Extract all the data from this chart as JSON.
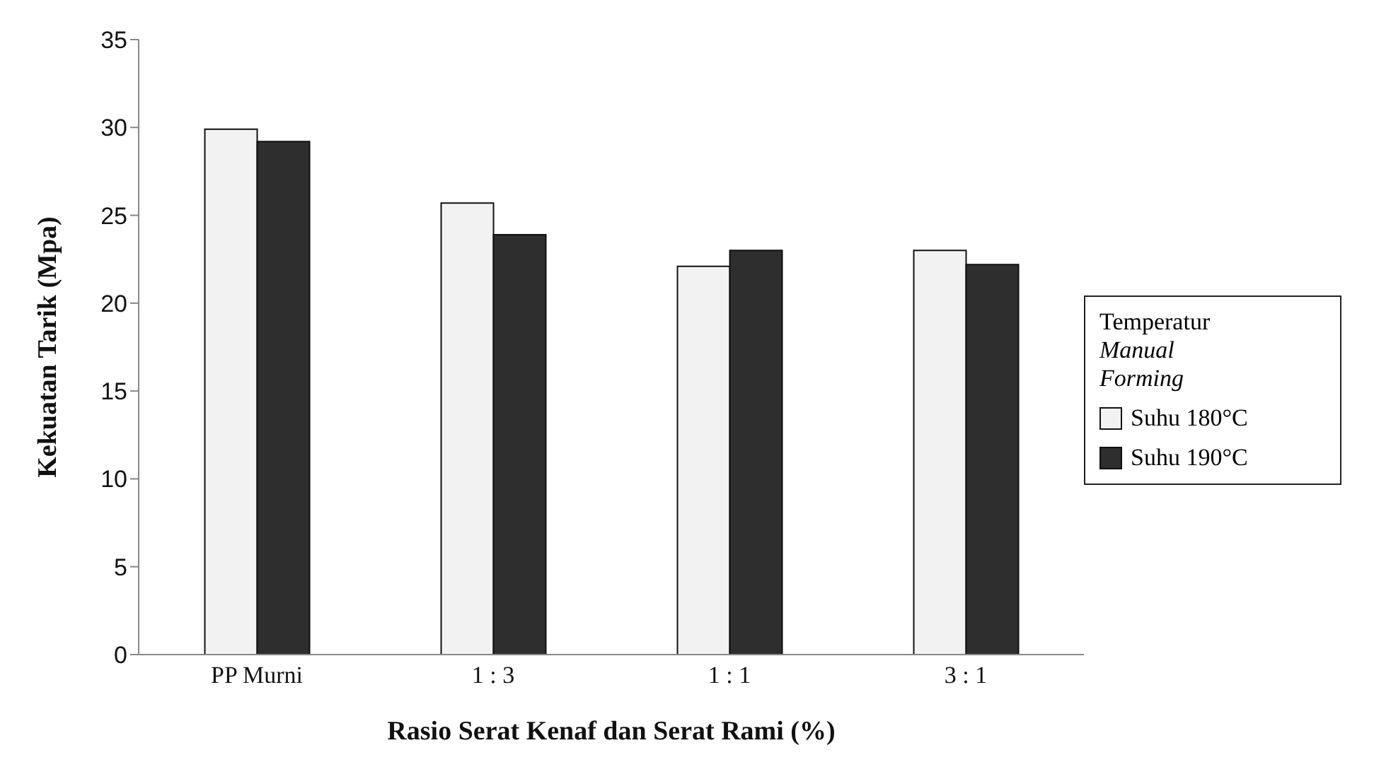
{
  "chart_data": {
    "type": "bar",
    "xlabel": "Rasio Serat Kenaf dan Serat Rami (%)",
    "ylabel": "Kekuatan Tarik (Mpa)",
    "legend_title": "Temperatur Manual Forming",
    "categories": [
      "PP Murni",
      "1 : 3",
      "1 : 1",
      "3 : 1"
    ],
    "series": [
      {
        "name": "Suhu 180°C",
        "color": "#f2f2f2",
        "values": [
          29.9,
          25.7,
          22.1,
          23.0
        ]
      },
      {
        "name": "Suhu 190°C",
        "color": "#2e2e2e",
        "values": [
          29.2,
          23.9,
          23.0,
          22.2
        ]
      }
    ],
    "ylim": [
      0,
      35
    ],
    "yticks": [
      0,
      5,
      10,
      15,
      20,
      25,
      30,
      35
    ],
    "grid": false,
    "legend": "right"
  }
}
